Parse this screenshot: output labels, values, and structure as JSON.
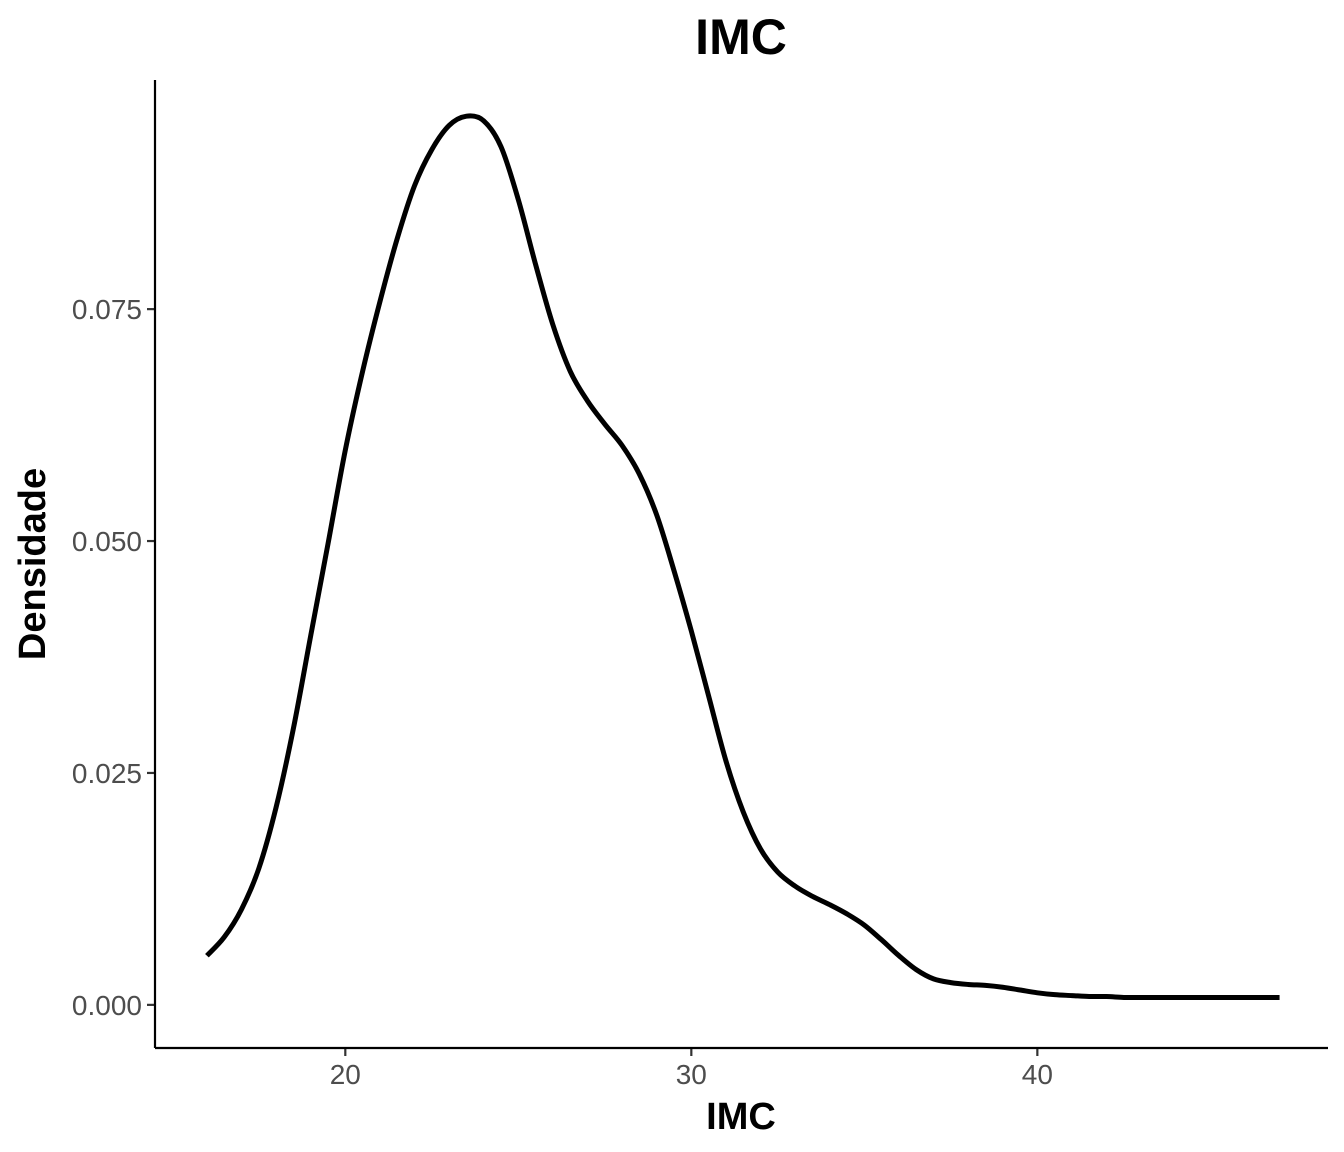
{
  "chart_data": {
    "type": "line",
    "title": "IMC",
    "xlabel": "IMC",
    "ylabel": "Densidade",
    "xlim": [
      14.5,
      48.4
    ],
    "ylim": [
      -0.00465,
      0.0997
    ],
    "x_ticks": [
      20,
      30,
      40
    ],
    "x_tick_labels": [
      "20",
      "30",
      "40"
    ],
    "y_ticks": [
      0.0,
      0.025,
      0.05,
      0.075
    ],
    "y_tick_labels": [
      "0.000",
      "0.025",
      "0.050",
      "0.075"
    ],
    "grid": false,
    "legend": "none",
    "colors": {
      "line": "#000000",
      "tick_text": "#4d4d4d"
    },
    "series": [
      {
        "x": [
          16.0,
          16.5,
          17.0,
          17.5,
          18.0,
          18.5,
          19.0,
          19.5,
          20.0,
          20.5,
          21.0,
          21.5,
          22.0,
          22.5,
          23.0,
          23.5,
          24.0,
          24.5,
          25.0,
          25.5,
          26.0,
          26.5,
          27.0,
          27.5,
          28.0,
          28.5,
          29.0,
          29.5,
          30.0,
          30.5,
          31.0,
          31.5,
          32.0,
          32.5,
          33.0,
          33.5,
          34.0,
          34.5,
          35.0,
          35.5,
          36.0,
          36.5,
          37.0,
          37.5,
          38.0,
          38.5,
          39.0,
          39.5,
          40.0,
          40.5,
          41.0,
          41.5,
          42.0,
          42.5,
          43.0,
          43.5,
          44.0,
          45.0,
          46.0,
          47.0
        ],
        "y": [
          0.0053,
          0.0073,
          0.0103,
          0.0147,
          0.0213,
          0.0298,
          0.0398,
          0.0497,
          0.0598,
          0.0683,
          0.0758,
          0.0826,
          0.0883,
          0.0922,
          0.0948,
          0.0958,
          0.0953,
          0.0925,
          0.0868,
          0.0798,
          0.0733,
          0.0683,
          0.0651,
          0.0626,
          0.0603,
          0.0572,
          0.0528,
          0.0468,
          0.0403,
          0.0333,
          0.0263,
          0.0208,
          0.0168,
          0.0143,
          0.0128,
          0.0117,
          0.0108,
          0.0098,
          0.0086,
          0.007,
          0.0053,
          0.0038,
          0.0028,
          0.0024,
          0.0022,
          0.0021,
          0.0019,
          0.0016,
          0.0013,
          0.0011,
          0.001,
          0.0009,
          0.0009,
          0.0008,
          0.0008,
          0.0008,
          0.0008,
          0.0008,
          0.0008,
          0.0008
        ]
      }
    ]
  }
}
